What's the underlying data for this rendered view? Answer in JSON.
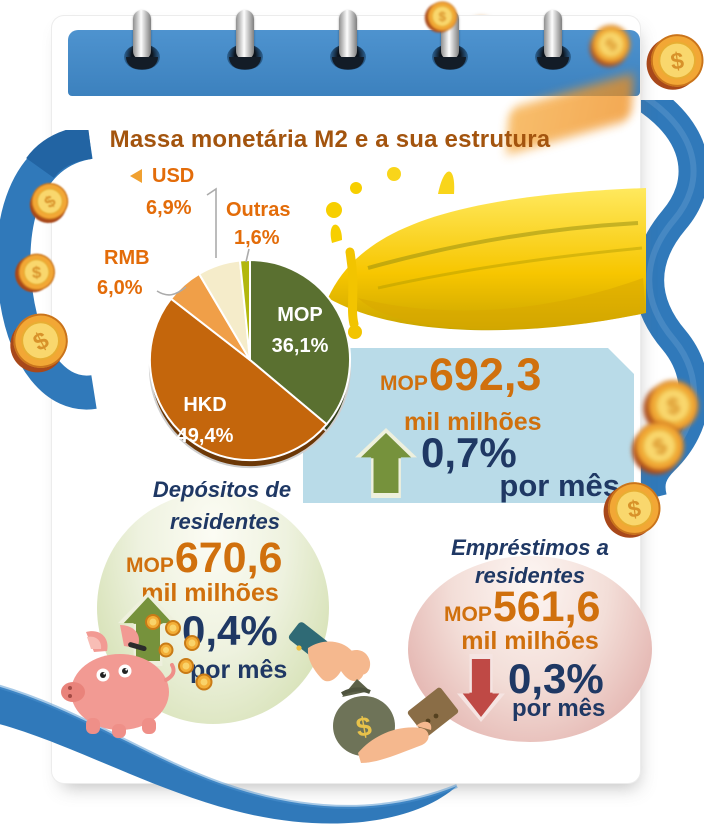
{
  "title": "Massa monetária M2 e a sua estrutura",
  "chart_data": {
    "type": "pie",
    "title": "Massa monetária M2 e a sua estrutura",
    "unit": "%",
    "start_angle_deg": -90,
    "direction": "clockwise",
    "legend_position": "around",
    "slices": [
      {
        "label": "MOP",
        "value": 36.1,
        "display": "36,1%",
        "color": "#5a7030"
      },
      {
        "label": "HKD",
        "value": 49.4,
        "display": "49,4%",
        "color": "#c4660c"
      },
      {
        "label": "RMB",
        "value": 6.0,
        "display": "6,0%",
        "color": "#f09f48"
      },
      {
        "label": "USD",
        "value": 6.9,
        "display": "6,9%",
        "color": "#f5ecca"
      },
      {
        "label": "Outras",
        "value": 1.6,
        "display": "1,6%",
        "color": "#b2b70e"
      }
    ]
  },
  "m2_box": {
    "currency": "MOP",
    "value": "692,3",
    "unit": "mil milhões",
    "change": "0,7%",
    "period": "por mês",
    "trend": "up"
  },
  "deposits_bubble": {
    "title_line1": "Depósitos de",
    "title_line2": "residentes",
    "currency": "MOP",
    "value": "670,6",
    "unit": "mil milhões",
    "change": "0,4%",
    "period": "por mês",
    "trend": "up"
  },
  "loans_bubble": {
    "title_line1": "Empréstimos a",
    "title_line2": "residentes",
    "currency": "MOP",
    "value": "561,6",
    "unit": "mil milhões",
    "change": "0,3%",
    "period": "por mês",
    "trend": "down"
  },
  "colors": {
    "title_text": "#a3540e",
    "orange_text": "#d0700d",
    "label_orange": "#e36c09",
    "navy_text": "#1f3864",
    "header_blue": "#3f86c5",
    "ribbon_blue": "#3079ba",
    "info_box_blue": "#b9dbe8",
    "arrow_up_green": "#76923c",
    "arrow_down_red": "#bf4945"
  }
}
